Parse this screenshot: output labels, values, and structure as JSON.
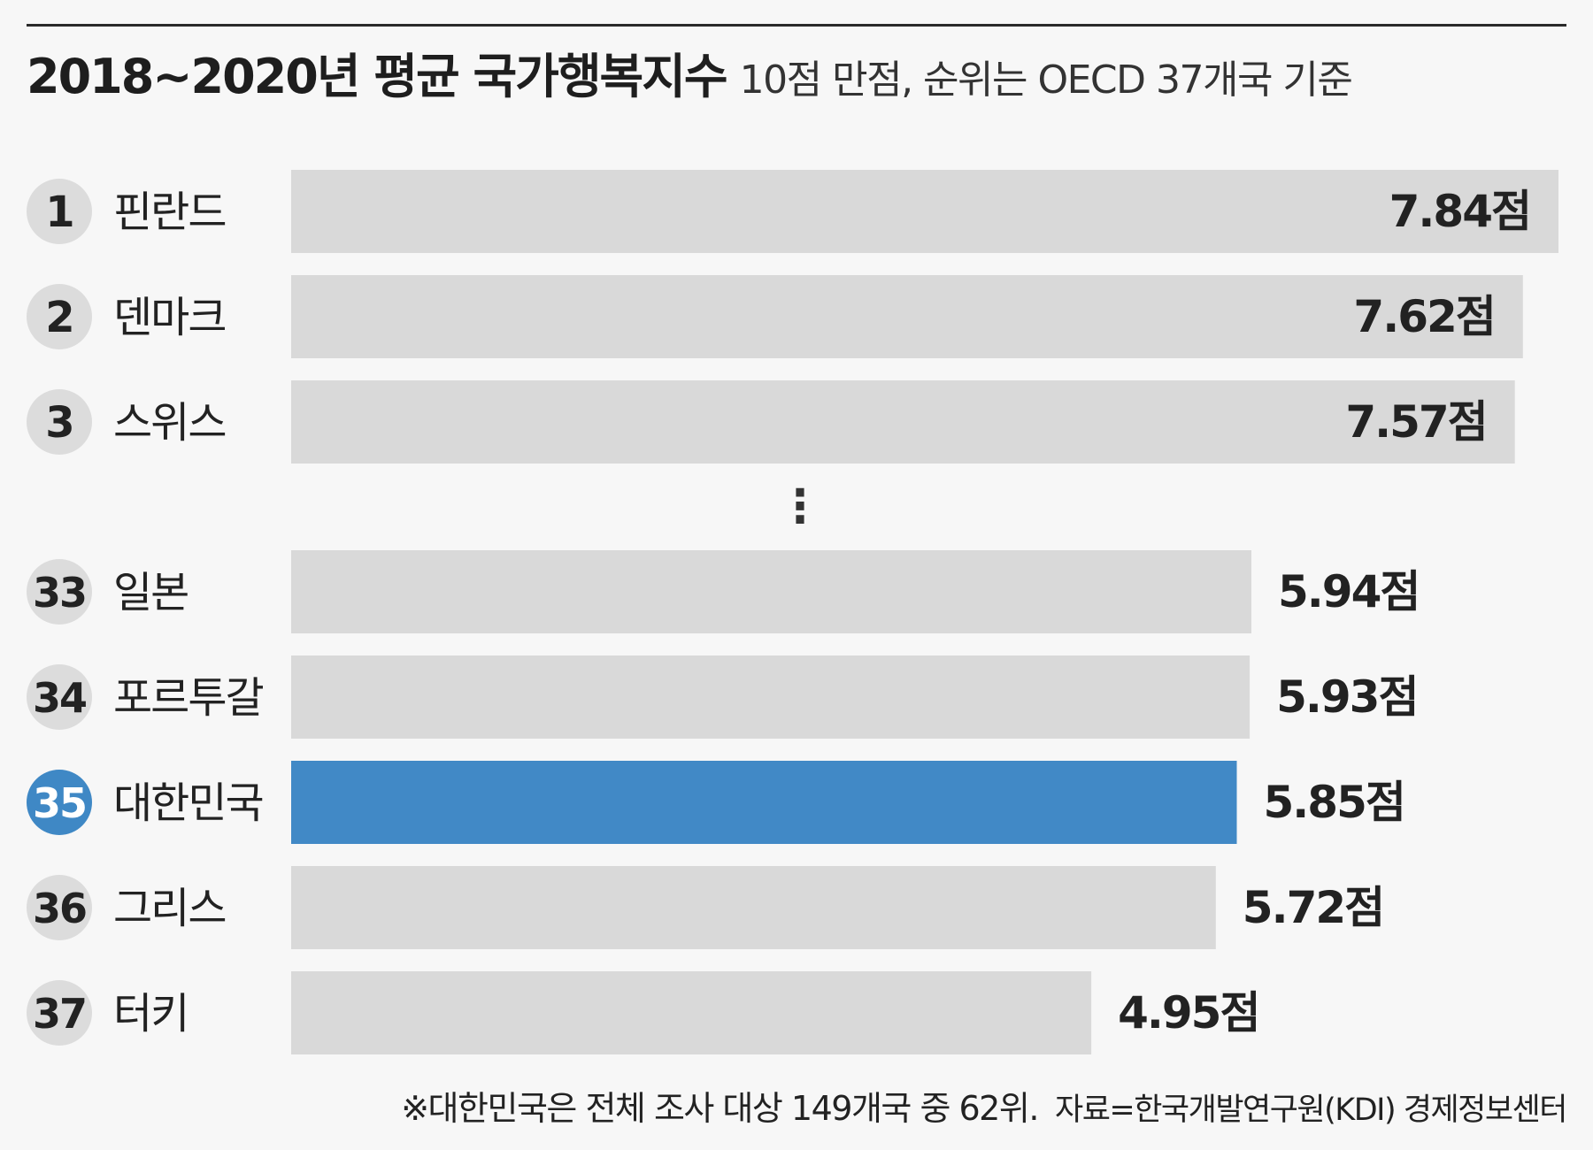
{
  "header": {
    "title": "2018~2020년 평균 국가행복지수",
    "subtitle": "10점 만점, 순위는 OECD 37개국 기준"
  },
  "chart_data": {
    "type": "bar",
    "orientation": "horizontal",
    "value_suffix": "점",
    "xlim": [
      0,
      7.84
    ],
    "grid": false,
    "colors": {
      "default_bar": "#d9d9d9",
      "highlight_bar": "#4189c6",
      "default_badge": "#dcdcdc",
      "highlight_badge": "#3f88c5",
      "text": "#222222"
    },
    "gap_marker": "⋮",
    "groups": [
      {
        "rows": [
          {
            "rank": "1",
            "country": "핀란드",
            "value": 7.84,
            "label": "7.84점",
            "highlight": false
          },
          {
            "rank": "2",
            "country": "덴마크",
            "value": 7.62,
            "label": "7.62점",
            "highlight": false
          },
          {
            "rank": "3",
            "country": "스위스",
            "value": 7.57,
            "label": "7.57점",
            "highlight": false
          }
        ]
      },
      {
        "rows": [
          {
            "rank": "33",
            "country": "일본",
            "value": 5.94,
            "label": "5.94점",
            "highlight": false
          },
          {
            "rank": "34",
            "country": "포르투갈",
            "value": 5.93,
            "label": "5.93점",
            "highlight": false
          },
          {
            "rank": "35",
            "country": "대한민국",
            "value": 5.85,
            "label": "5.85점",
            "highlight": true
          },
          {
            "rank": "36",
            "country": "그리스",
            "value": 5.72,
            "label": "5.72점",
            "highlight": false
          },
          {
            "rank": "37",
            "country": "터키",
            "value": 4.95,
            "label": "4.95점",
            "highlight": false
          }
        ]
      }
    ]
  },
  "footer": {
    "note": "※대한민국은 전체 조사 대상 149개국 중 62위.",
    "source": "자료=한국개발연구원(KDI) 경제정보센터"
  }
}
